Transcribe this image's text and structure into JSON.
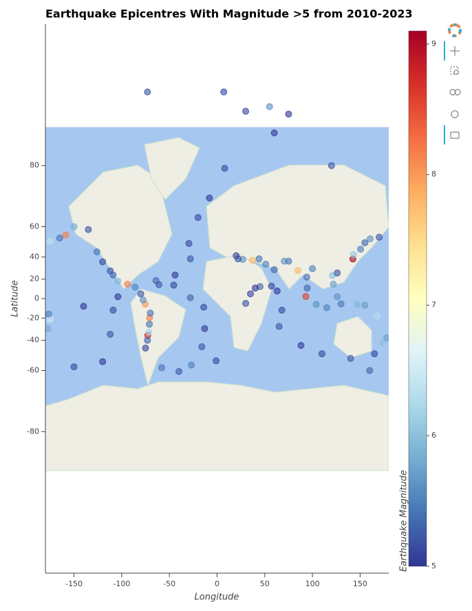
{
  "chart_data": {
    "type": "scatter",
    "title": "Earthquake Epicentres With Magnitude >5 from 2010-2023",
    "x_label": "Longitude",
    "y_label": "Latitude",
    "colorbar_label": "Earthquake Magnitude",
    "xlim": [
      -180,
      180
    ],
    "xticks": [
      -150,
      -100,
      -50,
      0,
      50,
      100,
      150
    ],
    "yscale": "mercator",
    "ylim": [
      -89.25,
      89.25
    ],
    "yticks": [
      80,
      60,
      40,
      20,
      0,
      -20,
      -40,
      -60,
      -80
    ],
    "clim": [
      5,
      9.1
    ],
    "cticks": [
      5,
      6,
      7,
      8,
      9
    ],
    "colormap": [
      "#313695",
      "#4575b4",
      "#74add1",
      "#abd9e9",
      "#e0f3f8",
      "#ffffbf",
      "#fee090",
      "#fdae61",
      "#f46d43",
      "#d73027",
      "#a50026"
    ],
    "x": [
      142.4,
      -72.7,
      93.1,
      -93.9,
      -158.6,
      84.7,
      37.0,
      -75.3,
      -70.8,
      143.0,
      150.5,
      155.0,
      160.5,
      170.0,
      -175.0,
      -165.0,
      -150.0,
      -135.0,
      -126.0,
      -120.0,
      -109.0,
      -104.0,
      -86.0,
      -80.0,
      -77.5,
      -71.0,
      -71.5,
      -73.0,
      -75.0,
      -64.0,
      -61.0,
      -27.0,
      -40.0,
      -58.0,
      -29.5,
      -28.0,
      -44.0,
      -45.5,
      -28.0,
      -14.0,
      -13.0,
      -16.0,
      -1.0,
      -20.0,
      -8.0,
      8.0,
      60.0,
      120.0,
      65.0,
      68.0,
      63.0,
      57.0,
      45.0,
      88.0,
      110.0,
      140.0,
      160.0,
      -150.0,
      -120.0,
      -112.0,
      -109.0,
      -104.0,
      -175.0,
      -177.5,
      -176.5,
      168.0,
      155.0,
      147.0,
      130.0,
      126.0,
      122.0,
      121.0,
      126.0,
      115.0,
      104.0,
      94.5,
      94.0,
      75.0,
      70.5,
      60.0,
      51.0,
      44.0,
      27.0,
      22.0,
      20.0,
      100.0,
      -73.0,
      7.0,
      55.0,
      30.0,
      75.0,
      30.0,
      35.0,
      40.0,
      178.0,
      173.5,
      165.0,
      -140.0,
      -112.0,
      -70.0
    ],
    "y": [
      38.3,
      -35.9,
      2.3,
      15.0,
      55.3,
      28.2,
      37.2,
      -5.8,
      -19.6,
      42.0,
      46.0,
      50.5,
      53.0,
      54.0,
      51.5,
      53.5,
      60.0,
      58.5,
      44.0,
      36.0,
      24.0,
      18.0,
      12.0,
      5.0,
      -1.5,
      -26.0,
      -33.0,
      -40.0,
      -46.0,
      18.5,
      14.5,
      -57.0,
      -60.5,
      -58.5,
      50.0,
      38.5,
      24.0,
      14.0,
      1.0,
      -9.0,
      -30.0,
      -45.0,
      -54.5,
      64.5,
      72.0,
      79.5,
      84.5,
      80.0,
      -28.0,
      -12.0,
      8.0,
      13.0,
      12.5,
      -44.0,
      -50.0,
      -53.0,
      -60.0,
      -58.0,
      -55.0,
      -35.0,
      -12.0,
      2.0,
      -21.0,
      -30.0,
      -16.0,
      -18.0,
      -7.0,
      -6.0,
      -5.5,
      2.0,
      15.0,
      23.5,
      26.0,
      -9.5,
      -6.0,
      11.0,
      22.0,
      36.5,
      36.5,
      29.0,
      34.0,
      38.5,
      38.0,
      38.5,
      41.0,
      30.0,
      87.4,
      87.4,
      86.6,
      86.3,
      86.1,
      -5.0,
      5.0,
      11.0,
      -38.0,
      -42.0,
      -50.0,
      -8.0,
      28.0,
      -15.0
    ],
    "magnitude": [
      9.1,
      8.8,
      8.6,
      8.2,
      8.2,
      7.8,
      7.8,
      8.0,
      8.2,
      6.1,
      5.5,
      5.3,
      5.6,
      5.2,
      6.4,
      5.4,
      5.8,
      5.2,
      5.4,
      5.1,
      5.3,
      5.9,
      5.5,
      5.2,
      5.6,
      5.4,
      6.2,
      5.3,
      5.1,
      5.3,
      5.2,
      5.5,
      5.2,
      5.4,
      5.1,
      5.2,
      5.0,
      5.1,
      5.3,
      5.1,
      5.0,
      5.2,
      5.1,
      5.1,
      5.0,
      5.1,
      5.0,
      5.2,
      5.2,
      5.1,
      5.0,
      5.1,
      5.3,
      5.0,
      5.1,
      5.2,
      5.3,
      5.1,
      5.0,
      5.2,
      5.1,
      5.0,
      6.5,
      5.8,
      5.5,
      6.3,
      5.7,
      5.9,
      5.4,
      5.6,
      5.7,
      6.0,
      5.2,
      5.5,
      5.6,
      5.3,
      5.4,
      5.4,
      5.6,
      5.3,
      5.5,
      5.4,
      5.6,
      5.2,
      5.1,
      5.5,
      5.2,
      5.1,
      5.6,
      5.1,
      5.0,
      5.2,
      5.1,
      5.0,
      5.7,
      6.0,
      5.1,
      5.0,
      5.2,
      5.4
    ]
  }
}
